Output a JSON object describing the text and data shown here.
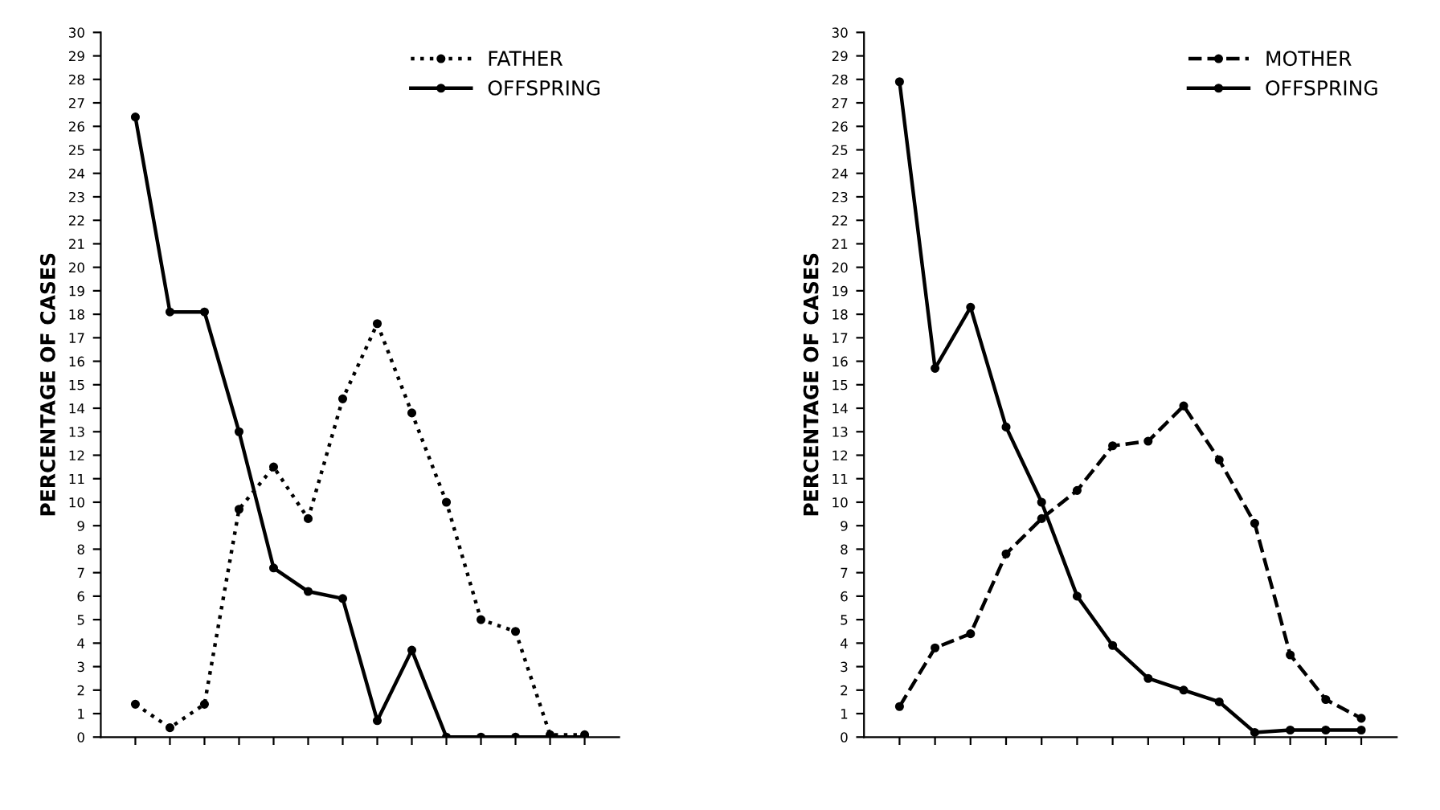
{
  "chart_data": [
    {
      "type": "line",
      "ylabel": "PERCENTAGE OF CASES",
      "categories": [
        null,
        null,
        null,
        null,
        null,
        null,
        null,
        null,
        null,
        null,
        null,
        null,
        null,
        null
      ],
      "ylim": [
        0,
        30
      ],
      "yticks": [
        0,
        1,
        2,
        3,
        4,
        5,
        6,
        7,
        8,
        9,
        10,
        11,
        12,
        13,
        14,
        15,
        16,
        17,
        18,
        19,
        20,
        21,
        22,
        23,
        24,
        25,
        26,
        27,
        28,
        29,
        30
      ],
      "legend": "top right",
      "marker": "circle",
      "grid": false,
      "series": [
        {
          "name": "FATHER",
          "color": "#000000",
          "line_style": "dotted",
          "values": [
            1.4,
            0.4,
            1.4,
            9.7,
            11.5,
            9.3,
            14.4,
            17.6,
            13.8,
            10.0,
            5.0,
            4.5,
            0.1,
            0.1
          ]
        },
        {
          "name": "OFFSPRING",
          "color": "#000000",
          "line_style": "solid",
          "values": [
            26.4,
            18.1,
            18.1,
            13.0,
            7.2,
            6.2,
            5.9,
            0.7,
            3.7,
            0,
            0,
            0,
            0,
            0
          ]
        }
      ]
    },
    {
      "type": "line",
      "ylabel": "PERCENTAGE OF CASES",
      "categories": [
        null,
        null,
        null,
        null,
        null,
        null,
        null,
        null,
        null,
        null,
        null,
        null,
        null,
        null
      ],
      "ylim": [
        0,
        30
      ],
      "yticks": [
        0,
        1,
        2,
        3,
        4,
        5,
        6,
        7,
        8,
        9,
        10,
        11,
        12,
        13,
        14,
        15,
        16,
        17,
        18,
        19,
        20,
        21,
        22,
        23,
        24,
        25,
        26,
        27,
        28,
        29,
        30
      ],
      "legend": "top right",
      "marker": "circle",
      "grid": false,
      "series": [
        {
          "name": "MOTHER",
          "color": "#000000",
          "line_style": "dashed",
          "values": [
            1.3,
            3.8,
            4.4,
            7.8,
            9.3,
            10.5,
            12.4,
            12.6,
            14.1,
            11.8,
            9.1,
            3.5,
            1.6,
            0.8
          ]
        },
        {
          "name": "OFFSPRING",
          "color": "#000000",
          "line_style": "solid",
          "values": [
            27.9,
            15.7,
            18.3,
            13.2,
            10.0,
            6.0,
            3.9,
            2.5,
            2.0,
            1.5,
            0.2,
            0.3,
            0.3,
            0.3
          ]
        }
      ]
    }
  ]
}
